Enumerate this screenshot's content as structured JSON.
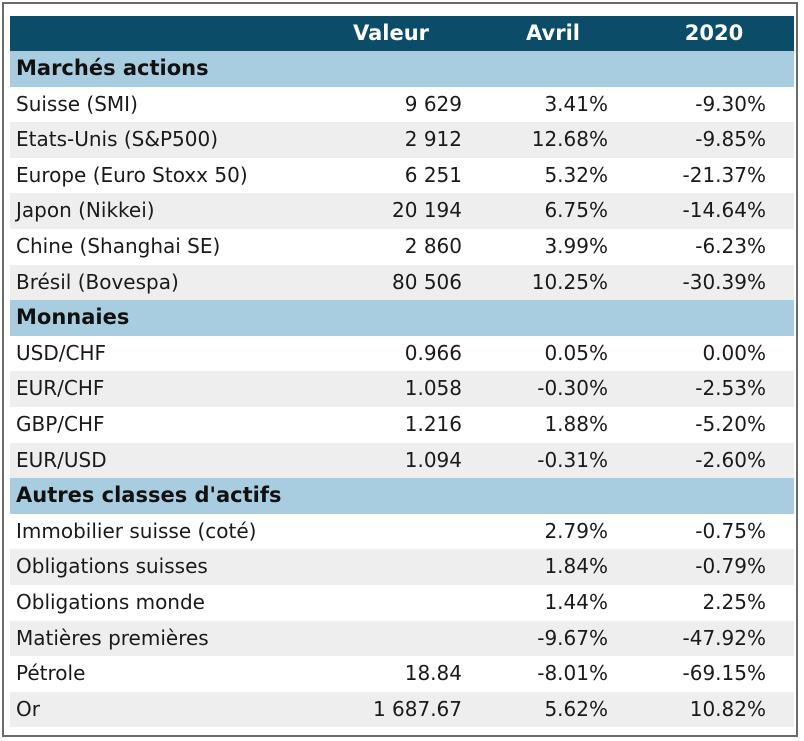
{
  "header": {
    "col0": "",
    "col1": "Valeur",
    "col2": "Avril",
    "col3": "2020"
  },
  "sections": [
    {
      "title": "Marchés actions",
      "rows": [
        {
          "name": "Suisse (SMI)",
          "valeur": "9 629",
          "avril": "3.41%",
          "y2020": "-9.30%"
        },
        {
          "name": "Etats-Unis (S&P500)",
          "valeur": "2 912",
          "avril": "12.68%",
          "y2020": "-9.85%"
        },
        {
          "name": "Europe (Euro Stoxx 50)",
          "valeur": "6 251",
          "avril": "5.32%",
          "y2020": "-21.37%"
        },
        {
          "name": "Japon (Nikkei)",
          "valeur": "20 194",
          "avril": "6.75%",
          "y2020": "-14.64%"
        },
        {
          "name": "Chine (Shanghai SE)",
          "valeur": "2 860",
          "avril": "3.99%",
          "y2020": "-6.23%"
        },
        {
          "name": "Brésil (Bovespa)",
          "valeur": "80 506",
          "avril": "10.25%",
          "y2020": "-30.39%"
        }
      ]
    },
    {
      "title": "Monnaies",
      "rows": [
        {
          "name": "USD/CHF",
          "valeur": "0.966",
          "avril": "0.05%",
          "y2020": "0.00%"
        },
        {
          "name": "EUR/CHF",
          "valeur": "1.058",
          "avril": "-0.30%",
          "y2020": "-2.53%"
        },
        {
          "name": "GBP/CHF",
          "valeur": "1.216",
          "avril": "1.88%",
          "y2020": "-5.20%"
        },
        {
          "name": "EUR/USD",
          "valeur": "1.094",
          "avril": "-0.31%",
          "y2020": "-2.60%"
        }
      ]
    },
    {
      "title": "Autres classes d'actifs",
      "rows": [
        {
          "name": "Immobilier suisse (coté)",
          "valeur": "",
          "avril": "2.79%",
          "y2020": "-0.75%"
        },
        {
          "name": "Obligations suisses",
          "valeur": "",
          "avril": "1.84%",
          "y2020": "-0.79%"
        },
        {
          "name": "Obligations monde",
          "valeur": "",
          "avril": "1.44%",
          "y2020": "2.25%"
        },
        {
          "name": "Matières premières",
          "valeur": "",
          "avril": "-9.67%",
          "y2020": "-47.92%"
        },
        {
          "name": "Pétrole",
          "valeur": "18.84",
          "avril": "-8.01%",
          "y2020": "-69.15%"
        },
        {
          "name": "Or",
          "valeur": "1 687.67",
          "avril": "5.62%",
          "y2020": "10.82%"
        }
      ]
    }
  ],
  "colors": {
    "header_bg": "#0b4c68",
    "section_bg": "#a9cde0",
    "stripe_bg": "#eeeeee"
  }
}
